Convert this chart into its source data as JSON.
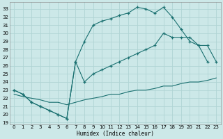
{
  "xlabel": "Humidex (Indice chaleur)",
  "bg_color": "#cce8e8",
  "line_color": "#1a7070",
  "grid_color": "#b0d4d4",
  "xlim": [
    -0.5,
    23.5
  ],
  "ylim": [
    18.8,
    33.8
  ],
  "xticks": [
    0,
    1,
    2,
    3,
    4,
    5,
    6,
    7,
    8,
    9,
    10,
    11,
    12,
    13,
    14,
    15,
    16,
    17,
    18,
    19,
    20,
    21,
    22,
    23
  ],
  "yticks": [
    19,
    20,
    21,
    22,
    23,
    24,
    25,
    26,
    27,
    28,
    29,
    30,
    31,
    32,
    33
  ],
  "line1_x": [
    0,
    1,
    2,
    3,
    4,
    5,
    6,
    7,
    8,
    9,
    10,
    11,
    12,
    13,
    14,
    15,
    16,
    17,
    18,
    19,
    20,
    21,
    22
  ],
  "line1_y": [
    23.0,
    22.5,
    21.5,
    21.0,
    20.5,
    20.0,
    19.5,
    26.5,
    29.0,
    31.0,
    31.5,
    31.8,
    32.2,
    32.5,
    33.2,
    33.0,
    32.5,
    33.2,
    32.0,
    30.5,
    29.0,
    28.5,
    26.5
  ],
  "line2_x": [
    0,
    1,
    2,
    3,
    4,
    5,
    6,
    7,
    8,
    9,
    10,
    11,
    12,
    13,
    14,
    15,
    16,
    17,
    18,
    19,
    20,
    21,
    22,
    23
  ],
  "line2_y": [
    23.0,
    22.5,
    21.5,
    21.0,
    20.5,
    20.0,
    19.5,
    26.5,
    24.0,
    25.0,
    25.5,
    26.0,
    26.5,
    27.0,
    27.5,
    28.0,
    28.5,
    30.0,
    29.5,
    29.5,
    29.5,
    28.5,
    28.5,
    26.5
  ],
  "line3_x": [
    0,
    1,
    2,
    3,
    4,
    5,
    6,
    7,
    8,
    9,
    10,
    11,
    12,
    13,
    14,
    15,
    16,
    17,
    18,
    19,
    20,
    21,
    22,
    23
  ],
  "line3_y": [
    22.5,
    22.2,
    22.0,
    21.8,
    21.5,
    21.5,
    21.2,
    21.5,
    21.8,
    22.0,
    22.2,
    22.5,
    22.5,
    22.8,
    23.0,
    23.0,
    23.2,
    23.5,
    23.5,
    23.8,
    24.0,
    24.0,
    24.2,
    24.5
  ]
}
